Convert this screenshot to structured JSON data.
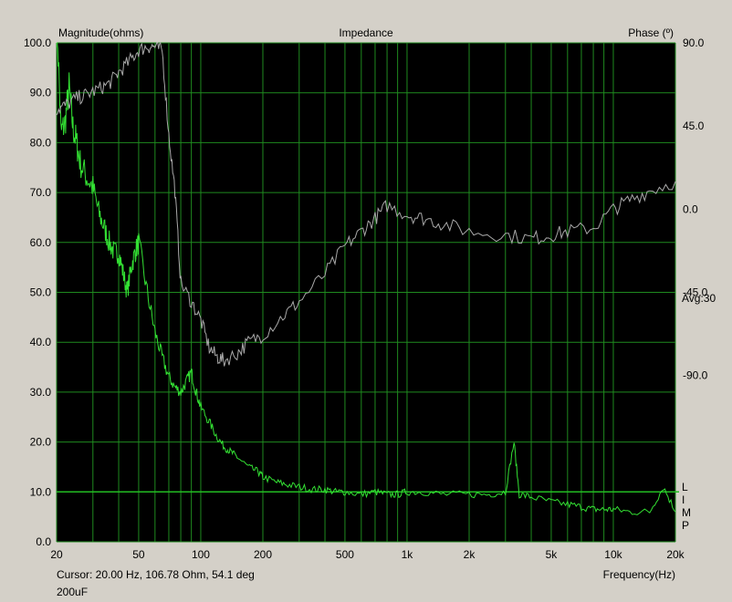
{
  "window": {
    "bg": "#d4d0c8",
    "plot_bg": "#000000",
    "grid_color": "#1f8a1f",
    "magnitude_color": "#33e033",
    "phase_color": "#a9a9a9",
    "cursor_line_color": "#22bb22"
  },
  "header": {
    "left_label": "Magnitude(ohms)",
    "center_label": "Impedance",
    "right_label": "Phase (º)"
  },
  "right_side": {
    "avg_label": "Avg:30",
    "limp_letters": [
      "L",
      "I",
      "M",
      "P"
    ]
  },
  "footer": {
    "cursor_readout": "Cursor: 20.00 Hz, 106.78 Ohm, 54.1 deg",
    "note": "200uF",
    "x_axis_title": "Frequency(Hz)"
  },
  "chart_data": {
    "type": "line",
    "title": "Impedance",
    "xlabel": "Frequency(Hz)",
    "ylabel": "Magnitude(ohms)",
    "y2label": "Phase (º)",
    "x_scale": "log",
    "xlim": [
      20,
      20000
    ],
    "ylim": [
      0,
      100
    ],
    "y2lim": [
      -180,
      90
    ],
    "grid": true,
    "x_ticks": [
      {
        "value": 20,
        "label": "20"
      },
      {
        "value": 50,
        "label": "50"
      },
      {
        "value": 100,
        "label": "100"
      },
      {
        "value": 200,
        "label": "200"
      },
      {
        "value": 500,
        "label": "500"
      },
      {
        "value": 1000,
        "label": "1k"
      },
      {
        "value": 2000,
        "label": "2k"
      },
      {
        "value": 5000,
        "label": "5k"
      },
      {
        "value": 10000,
        "label": "10k"
      },
      {
        "value": 20000,
        "label": "20k"
      }
    ],
    "x_minor_grid": [
      30,
      40,
      60,
      70,
      80,
      90,
      300,
      400,
      600,
      700,
      800,
      900,
      3000,
      4000,
      6000,
      7000,
      8000,
      9000
    ],
    "y_ticks": [
      {
        "value": 0,
        "label": "0.0"
      },
      {
        "value": 10,
        "label": "10.0"
      },
      {
        "value": 20,
        "label": "20.0"
      },
      {
        "value": 30,
        "label": "30.0"
      },
      {
        "value": 40,
        "label": "40.0"
      },
      {
        "value": 50,
        "label": "50.0"
      },
      {
        "value": 60,
        "label": "60.0"
      },
      {
        "value": 70,
        "label": "70.0"
      },
      {
        "value": 80,
        "label": "80.0"
      },
      {
        "value": 90,
        "label": "90.0"
      },
      {
        "value": 100,
        "label": "100.0"
      }
    ],
    "y2_ticks": [
      {
        "value": 90,
        "label": "90.0"
      },
      {
        "value": 45,
        "label": "45.0"
      },
      {
        "value": 0,
        "label": "0.0"
      },
      {
        "value": -45,
        "label": "-45.0"
      },
      {
        "value": -90,
        "label": "-90.0"
      }
    ],
    "reference_line_y": 10,
    "series": [
      {
        "name": "Magnitude",
        "axis": "left",
        "color": "#33e033",
        "x": [
          20,
          21,
          22,
          23,
          24,
          25,
          26,
          28,
          30,
          32,
          34,
          36,
          38,
          40,
          42,
          44,
          46,
          48,
          50,
          55,
          60,
          65,
          70,
          75,
          80,
          85,
          90,
          95,
          100,
          110,
          120,
          130,
          140,
          150,
          170,
          190,
          200,
          230,
          260,
          300,
          350,
          400,
          450,
          500,
          600,
          700,
          800,
          900,
          1000,
          1200,
          1500,
          2000,
          2500,
          3000,
          3300,
          3500,
          4000,
          5000,
          6000,
          7000,
          8000,
          9000,
          10000,
          12000,
          15000,
          17500,
          20000
        ],
        "y": [
          106.8,
          82,
          84,
          91,
          83,
          80,
          76,
          73,
          71,
          66,
          63,
          60,
          58,
          58,
          54,
          50,
          55,
          58,
          60,
          50,
          42,
          37,
          33,
          31,
          30,
          32,
          34,
          30,
          27,
          24,
          21,
          19,
          18,
          17,
          15,
          14,
          13,
          12,
          11.5,
          11,
          10.5,
          10.5,
          10,
          10,
          9.5,
          10,
          9.5,
          9.5,
          10,
          10,
          9.5,
          9.5,
          9.5,
          10,
          20,
          9.5,
          9,
          8,
          7.5,
          7,
          6.5,
          6.5,
          6.5,
          6,
          6,
          11,
          6
        ]
      },
      {
        "name": "Phase",
        "axis": "right",
        "color": "#a9a9a9",
        "x": [
          20,
          22,
          25,
          28,
          32,
          36,
          40,
          45,
          50,
          55,
          60,
          65,
          70,
          75,
          80,
          90,
          100,
          110,
          120,
          130,
          150,
          170,
          200,
          250,
          300,
          400,
          500,
          600,
          700,
          800,
          1000,
          1200,
          1500,
          2000,
          3000,
          4000,
          5000,
          6000,
          8000,
          10000,
          12000,
          15000,
          20000
        ],
        "y": [
          54,
          56,
          60,
          62,
          65,
          68,
          74,
          80,
          86,
          88,
          88,
          86,
          40,
          10,
          -40,
          -50,
          -60,
          -75,
          -80,
          -82,
          -78,
          -72,
          -68,
          -58,
          -50,
          -35,
          -20,
          -12,
          -5,
          2,
          -3,
          -5,
          -8,
          -12,
          -14,
          -16,
          -14,
          -12,
          -10,
          0,
          5,
          10,
          15
        ]
      }
    ]
  }
}
